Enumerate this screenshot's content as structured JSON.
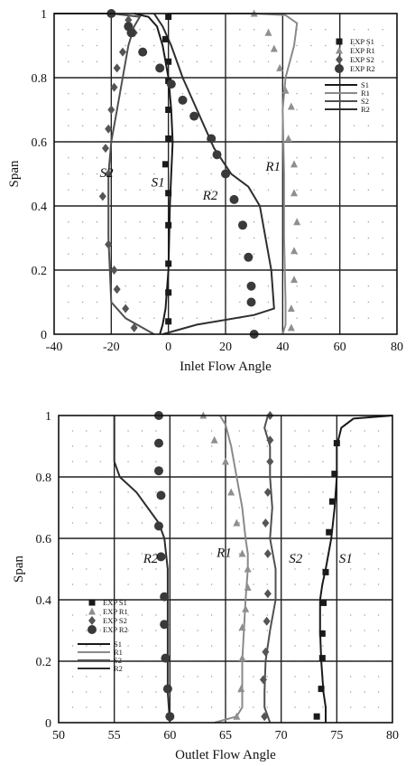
{
  "chart_data": [
    {
      "type": "line",
      "xlabel": "Inlet Flow Angle",
      "ylabel": "Span",
      "xlim": [
        -40,
        80
      ],
      "ylim": [
        0,
        1
      ],
      "xticks": [
        "-40",
        "-20",
        "0",
        "20",
        "40",
        "60",
        "80"
      ],
      "yticks": [
        "0",
        "0.2",
        "0.4",
        "0.6",
        "0.8",
        "1"
      ],
      "grid": true,
      "legend_position": "top-right",
      "legend_markers": [
        "EXP S1",
        "EXP R1",
        "EXP S2",
        "EXP R2"
      ],
      "legend_lines": [
        "S1",
        "R1",
        "S2",
        "R2"
      ],
      "annotations": [
        {
          "text": "S2",
          "x": -24,
          "y": 0.49
        },
        {
          "text": "S1",
          "x": -6,
          "y": 0.46
        },
        {
          "text": "R2",
          "x": 12,
          "y": 0.42
        },
        {
          "text": "R1",
          "x": 34,
          "y": 0.51
        }
      ],
      "series": [
        {
          "name": "S1",
          "color": "#1a1a1a",
          "points": [
            [
              -3,
              0
            ],
            [
              -2,
              0.03
            ],
            [
              -1,
              0.08
            ],
            [
              0,
              0.2
            ],
            [
              0.5,
              0.4
            ],
            [
              1,
              0.5
            ],
            [
              1.5,
              0.6
            ],
            [
              1,
              0.7
            ],
            [
              0,
              0.8
            ],
            [
              -2,
              0.9
            ],
            [
              -4,
              0.96
            ],
            [
              -7,
              0.99
            ],
            [
              -12,
              1
            ]
          ]
        },
        {
          "name": "R1",
          "color": "#8a8a8a",
          "points": [
            [
              40,
              0
            ],
            [
              41,
              0.03
            ],
            [
              41,
              0.1
            ],
            [
              40.5,
              0.3
            ],
            [
              40.5,
              0.5
            ],
            [
              40,
              0.7
            ],
            [
              41,
              0.8
            ],
            [
              44,
              0.9
            ],
            [
              45,
              0.97
            ],
            [
              41,
              0.995
            ],
            [
              30,
              1
            ],
            [
              0,
              1
            ]
          ]
        },
        {
          "name": "S2",
          "color": "#505050",
          "points": [
            [
              -5,
              0
            ],
            [
              -15,
              0.05
            ],
            [
              -20,
              0.1
            ],
            [
              -21,
              0.3
            ],
            [
              -21,
              0.5
            ],
            [
              -20,
              0.6
            ],
            [
              -18,
              0.7
            ],
            [
              -16,
              0.8
            ],
            [
              -14,
              0.9
            ],
            [
              -12,
              0.96
            ],
            [
              -10,
              0.99
            ],
            [
              -20,
              1
            ],
            [
              -40,
              1
            ]
          ]
        },
        {
          "name": "R2",
          "color": "#2e2e2e",
          "points": [
            [
              -2,
              0
            ],
            [
              10,
              0.03
            ],
            [
              30,
              0.06
            ],
            [
              37,
              0.08
            ],
            [
              36,
              0.2
            ],
            [
              32,
              0.4
            ],
            [
              28,
              0.46
            ],
            [
              22,
              0.5
            ],
            [
              16,
              0.58
            ],
            [
              10,
              0.7
            ],
            [
              5,
              0.8
            ],
            [
              1,
              0.9
            ],
            [
              -2,
              0.96
            ],
            [
              -5,
              1
            ]
          ]
        },
        {
          "name": "EXP S1",
          "marker": "square",
          "color": "#1a1a1a",
          "points": [
            [
              0,
              0.99
            ],
            [
              -1,
              0.92
            ],
            [
              0,
              0.85
            ],
            [
              0,
              0.79
            ],
            [
              0,
              0.7
            ],
            [
              0,
              0.61
            ],
            [
              -1,
              0.53
            ],
            [
              0,
              0.44
            ],
            [
              0,
              0.34
            ],
            [
              0,
              0.22
            ],
            [
              0,
              0.13
            ],
            [
              0,
              0.04
            ]
          ]
        },
        {
          "name": "EXP R1",
          "marker": "triangle",
          "color": "#8f8f8f",
          "points": [
            [
              30,
              1
            ],
            [
              35,
              0.94
            ],
            [
              37,
              0.89
            ],
            [
              39,
              0.83
            ],
            [
              41,
              0.76
            ],
            [
              43,
              0.71
            ],
            [
              42,
              0.61
            ],
            [
              44,
              0.53
            ],
            [
              44,
              0.44
            ],
            [
              45,
              0.35
            ],
            [
              44,
              0.26
            ],
            [
              44,
              0.17
            ],
            [
              43,
              0.08
            ],
            [
              43,
              0.02
            ]
          ]
        },
        {
          "name": "EXP S2",
          "marker": "diamond",
          "color": "#555555",
          "points": [
            [
              -14,
              0.98
            ],
            [
              -12,
              0.94
            ],
            [
              -16,
              0.88
            ],
            [
              -18,
              0.83
            ],
            [
              -19,
              0.77
            ],
            [
              -20,
              0.7
            ],
            [
              -21,
              0.64
            ],
            [
              -22,
              0.58
            ],
            [
              -21,
              0.5
            ],
            [
              -23,
              0.43
            ],
            [
              -21,
              0.28
            ],
            [
              -19,
              0.2
            ],
            [
              -18,
              0.14
            ],
            [
              -15,
              0.08
            ],
            [
              -12,
              0.02
            ]
          ]
        },
        {
          "name": "EXP R2",
          "marker": "circle",
          "color": "#3a3a3a",
          "points": [
            [
              -20,
              1
            ],
            [
              -14,
              0.96
            ],
            [
              -13,
              0.94
            ],
            [
              -9,
              0.88
            ],
            [
              -3,
              0.83
            ],
            [
              1,
              0.78
            ],
            [
              5,
              0.73
            ],
            [
              9,
              0.68
            ],
            [
              15,
              0.61
            ],
            [
              17,
              0.56
            ],
            [
              20,
              0.5
            ],
            [
              23,
              0.42
            ],
            [
              26,
              0.34
            ],
            [
              28,
              0.24
            ],
            [
              29,
              0.15
            ],
            [
              29,
              0.1
            ],
            [
              30,
              0
            ]
          ]
        }
      ]
    },
    {
      "type": "line",
      "xlabel": "Outlet Flow Angle",
      "ylabel": "Span",
      "xlim": [
        50,
        80
      ],
      "ylim": [
        0,
        1
      ],
      "xticks": [
        "50",
        "55",
        "60",
        "65",
        "70",
        "75",
        "80"
      ],
      "yticks": [
        "0",
        "0.2",
        "0.4",
        "0.6",
        "0.8",
        "1"
      ],
      "grid": true,
      "legend_position": "bottom-left",
      "legend_markers": [
        "EXP S1",
        "EXP R1",
        "EXP S2",
        "EXP R2"
      ],
      "legend_lines": [
        "S1",
        "R1",
        "S2",
        "R2"
      ],
      "annotations": [
        {
          "text": "R2",
          "x": 57.6,
          "y": 0.52
        },
        {
          "text": "R1",
          "x": 64.2,
          "y": 0.54
        },
        {
          "text": "S2",
          "x": 70.7,
          "y": 0.52
        },
        {
          "text": "S1",
          "x": 75.2,
          "y": 0.52
        }
      ],
      "series": [
        {
          "name": "S1",
          "color": "#1a1a1a",
          "points": [
            [
              74,
              0
            ],
            [
              74,
              0.05
            ],
            [
              73.8,
              0.1
            ],
            [
              73.6,
              0.2
            ],
            [
              73.5,
              0.3
            ],
            [
              73.5,
              0.4
            ],
            [
              73.7,
              0.45
            ],
            [
              74,
              0.5
            ],
            [
              74.5,
              0.6
            ],
            [
              74.8,
              0.7
            ],
            [
              75,
              0.8
            ],
            [
              75,
              0.9
            ],
            [
              75.4,
              0.96
            ],
            [
              76.5,
              0.99
            ],
            [
              80,
              1
            ]
          ]
        },
        {
          "name": "R1",
          "color": "#8a8a8a",
          "points": [
            [
              64,
              0
            ],
            [
              66,
              0.02
            ],
            [
              66.5,
              0.05
            ],
            [
              66.5,
              0.2
            ],
            [
              66.8,
              0.4
            ],
            [
              67,
              0.5
            ],
            [
              67,
              0.55
            ],
            [
              66.8,
              0.6
            ],
            [
              66.5,
              0.7
            ],
            [
              66,
              0.8
            ],
            [
              65.5,
              0.9
            ],
            [
              65,
              0.97
            ],
            [
              64.5,
              1
            ]
          ]
        },
        {
          "name": "S2",
          "color": "#505050",
          "points": [
            [
              69,
              0
            ],
            [
              68.5,
              0.05
            ],
            [
              68.5,
              0.1
            ],
            [
              68.6,
              0.2
            ],
            [
              69,
              0.3
            ],
            [
              69.5,
              0.4
            ],
            [
              69.5,
              0.5
            ],
            [
              69,
              0.6
            ],
            [
              69.2,
              0.7
            ],
            [
              69,
              0.8
            ],
            [
              69,
              0.9
            ],
            [
              68.5,
              0.96
            ],
            [
              68.8,
              1
            ]
          ]
        },
        {
          "name": "R2",
          "color": "#2e2e2e",
          "points": [
            [
              60,
              0
            ],
            [
              59.8,
              0.1
            ],
            [
              59.8,
              0.3
            ],
            [
              59.8,
              0.5
            ],
            [
              59.5,
              0.6
            ],
            [
              59,
              0.65
            ],
            [
              57,
              0.75
            ],
            [
              55.5,
              0.8
            ],
            [
              55,
              0.85
            ],
            [
              55,
              0.9
            ],
            [
              55,
              0.95
            ],
            [
              55,
              1
            ]
          ]
        },
        {
          "name": "EXP S1",
          "marker": "square",
          "color": "#1a1a1a",
          "points": [
            [
              75,
              0.91
            ],
            [
              74.8,
              0.81
            ],
            [
              74.6,
              0.72
            ],
            [
              74.3,
              0.62
            ],
            [
              74,
              0.49
            ],
            [
              73.8,
              0.39
            ],
            [
              73.7,
              0.29
            ],
            [
              73.7,
              0.21
            ],
            [
              73.6,
              0.11
            ],
            [
              73.2,
              0.02
            ]
          ]
        },
        {
          "name": "EXP R1",
          "marker": "triangle",
          "color": "#8f8f8f",
          "points": [
            [
              63,
              1
            ],
            [
              64,
              0.92
            ],
            [
              65,
              0.85
            ],
            [
              65.5,
              0.75
            ],
            [
              66,
              0.65
            ],
            [
              66.5,
              0.55
            ],
            [
              67,
              0.5
            ],
            [
              67,
              0.44
            ],
            [
              66.8,
              0.37
            ],
            [
              66.5,
              0.31
            ],
            [
              66.5,
              0.21
            ],
            [
              66.4,
              0.11
            ],
            [
              66,
              0.02
            ]
          ]
        },
        {
          "name": "EXP S2",
          "marker": "diamond",
          "color": "#555555",
          "points": [
            [
              69,
              1
            ],
            [
              69,
              0.92
            ],
            [
              69,
              0.85
            ],
            [
              68.8,
              0.75
            ],
            [
              68.6,
              0.65
            ],
            [
              68.8,
              0.55
            ],
            [
              68.8,
              0.42
            ],
            [
              68.7,
              0.33
            ],
            [
              68.6,
              0.23
            ],
            [
              68.4,
              0.14
            ],
            [
              68.5,
              0.02
            ]
          ]
        },
        {
          "name": "EXP R2",
          "marker": "circle",
          "color": "#3a3a3a",
          "points": [
            [
              59,
              1
            ],
            [
              59,
              0.91
            ],
            [
              59,
              0.82
            ],
            [
              59.2,
              0.74
            ],
            [
              59,
              0.64
            ],
            [
              59.2,
              0.54
            ],
            [
              59.5,
              0.41
            ],
            [
              59.5,
              0.32
            ],
            [
              59.6,
              0.21
            ],
            [
              59.8,
              0.11
            ],
            [
              60,
              0.02
            ]
          ]
        }
      ]
    }
  ]
}
